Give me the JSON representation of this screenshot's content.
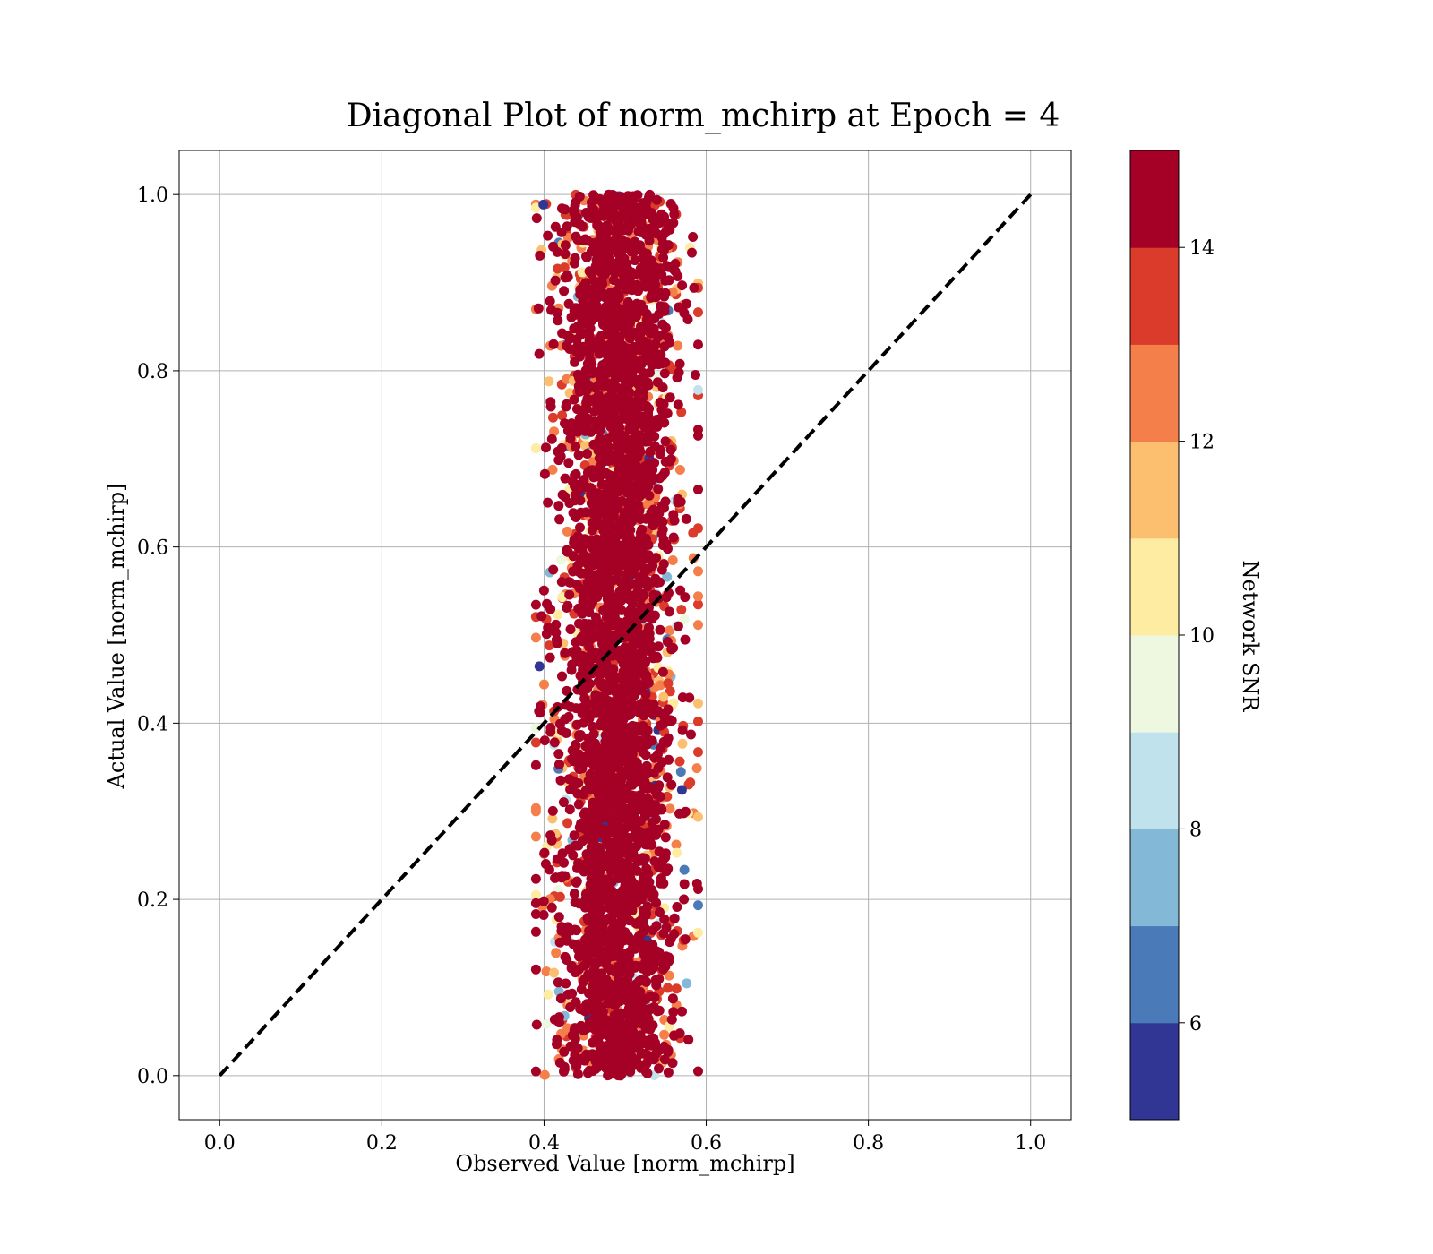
{
  "chart_data": {
    "type": "scatter",
    "title": "Diagonal Plot of norm_mchirp at Epoch = 4",
    "xlabel": "Observed Value [norm_mchirp]",
    "ylabel": "Actual Value [norm_mchirp]",
    "xlim": [
      -0.05,
      1.05
    ],
    "ylim": [
      -0.05,
      1.05
    ],
    "x_ticks": [
      "0.0",
      "0.2",
      "0.4",
      "0.6",
      "0.8",
      "1.0"
    ],
    "y_ticks": [
      "0.0",
      "0.2",
      "0.4",
      "0.6",
      "0.8",
      "1.0"
    ],
    "grid": true,
    "reference_line": {
      "style": "dashed",
      "color": "#000000",
      "from": [
        0,
        0
      ],
      "to": [
        1,
        1
      ]
    },
    "points_summary": {
      "x_center": 0.49,
      "x_spread": 0.04,
      "x_range_observed": [
        0.39,
        0.59
      ],
      "y_range": [
        0.0,
        1.0
      ],
      "dominant_snr": 15
    },
    "colorbar": {
      "label": "Network SNR",
      "range": [
        5,
        15
      ],
      "ticks": [
        "6",
        "8",
        "10",
        "12",
        "14"
      ],
      "tick_values": [
        6,
        8,
        10,
        12,
        14
      ],
      "bins": [
        {
          "from": 5,
          "to": 6,
          "color": "#313695"
        },
        {
          "from": 6,
          "to": 7,
          "color": "#4a7ab7"
        },
        {
          "from": 7,
          "to": 8,
          "color": "#84b8d7"
        },
        {
          "from": 8,
          "to": 9,
          "color": "#c0e2ec"
        },
        {
          "from": 9,
          "to": 10,
          "color": "#eef7e0"
        },
        {
          "from": 10,
          "to": 11,
          "color": "#feeca2"
        },
        {
          "from": 11,
          "to": 12,
          "color": "#fcbf6f"
        },
        {
          "from": 12,
          "to": 13,
          "color": "#f47f4a"
        },
        {
          "from": 13,
          "to": 14,
          "color": "#db3b2b"
        },
        {
          "from": 14,
          "to": 15,
          "color": "#a50026"
        }
      ]
    }
  }
}
